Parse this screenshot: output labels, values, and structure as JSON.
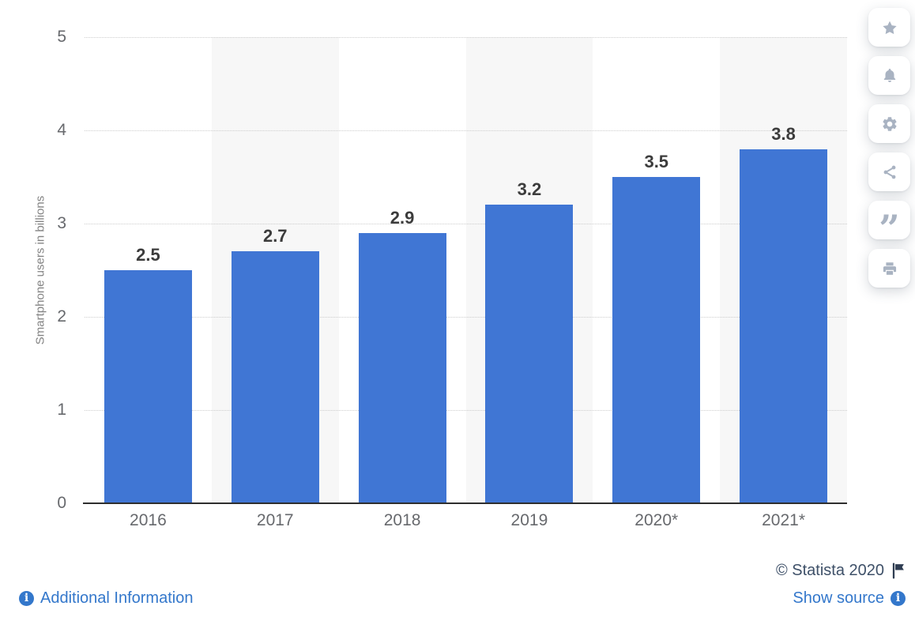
{
  "chart_data": {
    "type": "bar",
    "title": "",
    "categories": [
      "2016",
      "2017",
      "2018",
      "2019",
      "2020*",
      "2021*"
    ],
    "values": [
      2.5,
      2.7,
      2.9,
      3.2,
      3.5,
      3.8
    ],
    "xlabel": "",
    "ylabel": "Smartphone users in billions",
    "ylim": [
      0,
      5
    ],
    "yticks": [
      0,
      1,
      2,
      3,
      4,
      5
    ],
    "grid": "horizontal-dotted",
    "legend": "none",
    "shaded_categories": [
      "2017",
      "2019",
      "2021*"
    ]
  },
  "footer": {
    "copyright": "© Statista 2020",
    "additional_info_label": "Additional Information",
    "show_source_label": "Show source"
  },
  "sidebar": {
    "buttons": [
      {
        "action": "favorite",
        "icon": "star-icon"
      },
      {
        "action": "notifications",
        "icon": "bell-icon"
      },
      {
        "action": "settings",
        "icon": "gear-icon"
      },
      {
        "action": "share",
        "icon": "share-icon"
      },
      {
        "action": "cite",
        "icon": "quote-icon"
      },
      {
        "action": "print",
        "icon": "printer-icon"
      }
    ]
  },
  "colors": {
    "bar_blue": "#4076d4",
    "band_gray": "#f7f7f7",
    "grid_gray": "#cdcdcd",
    "axis_dark": "#2e2e2e",
    "tick_text": "#67696d",
    "value_text": "#3c3c3c",
    "ytitle_text": "#838383",
    "link_blue": "#3377cb",
    "copyright_text": "#3e5068",
    "flag_dark": "#2f3d52",
    "sidebar_icon": "#a9b3c2",
    "background": "#ffffff"
  }
}
